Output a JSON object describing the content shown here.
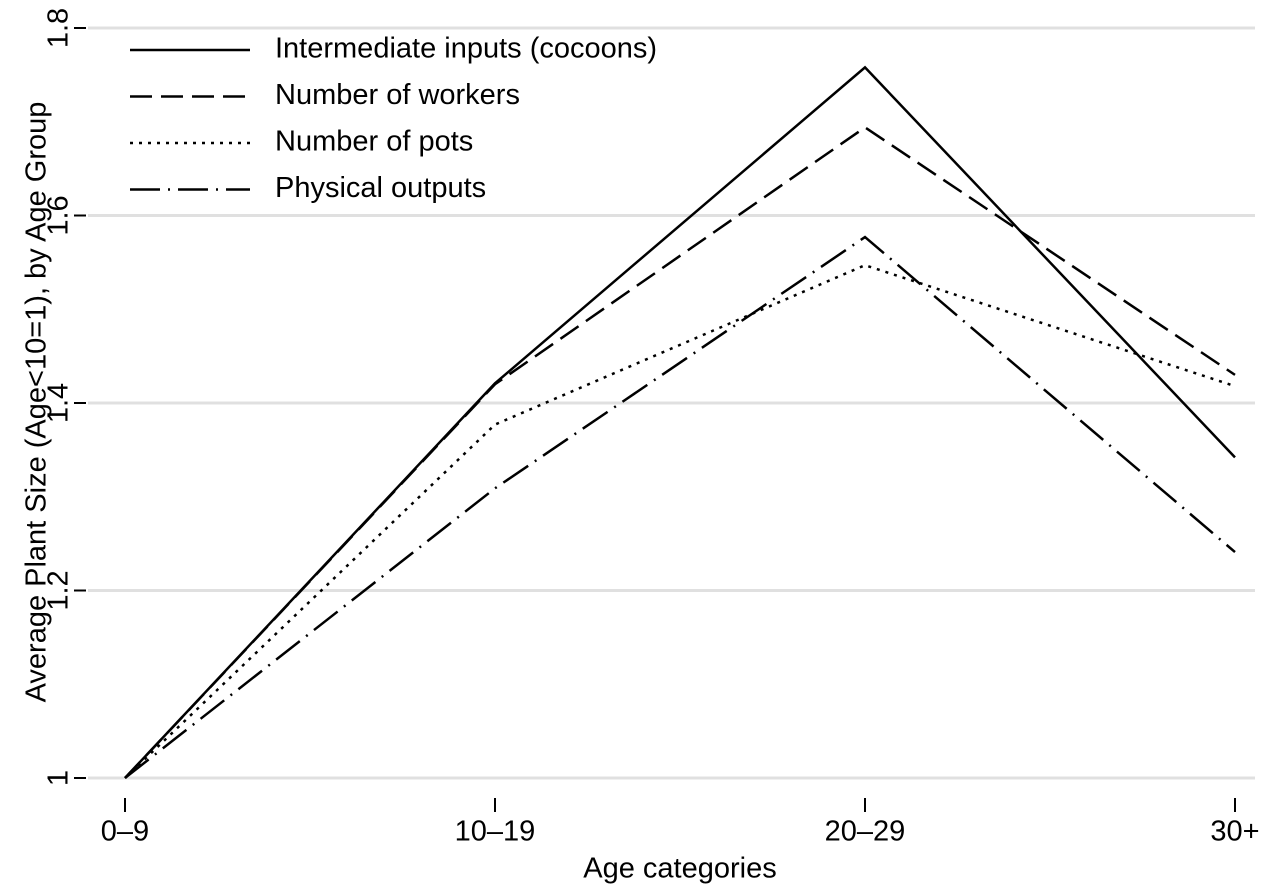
{
  "chart_data": {
    "type": "line",
    "y_label": "Average Plant Size (Age<10=1), by Age Group",
    "x_label": "Age categories",
    "categories": [
      "0–9",
      "10–19",
      "20–29",
      "30+"
    ],
    "series": [
      {
        "name": "Intermediate inputs (cocoons)",
        "color": "#000000",
        "style": "solid",
        "values": [
          1,
          1.421,
          1.758,
          1.342
        ]
      },
      {
        "name": "Number of workers",
        "color": "#000000",
        "style": "dashed",
        "values": [
          1,
          1.42,
          1.694,
          1.43
        ]
      },
      {
        "name": "Number of pots",
        "color": "#000000",
        "style": "dotted",
        "values": [
          1,
          1.377,
          1.547,
          1.418
        ]
      },
      {
        "name": "Physical outputs",
        "color": "#000000",
        "style": "dashdot",
        "values": [
          1,
          1.309,
          1.577,
          1.241
        ]
      }
    ],
    "ylim": [
      1,
      1.8
    ],
    "yticks": [
      1,
      1.2,
      1.4,
      1.6,
      1.8
    ],
    "grid": true,
    "legend": "top-left"
  }
}
